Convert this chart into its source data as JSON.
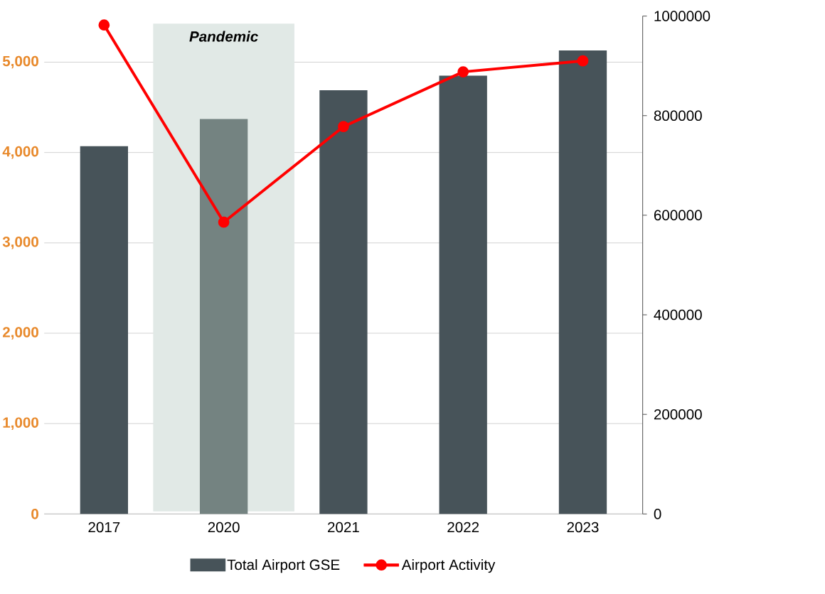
{
  "chart_data": {
    "type": "bar",
    "categories": [
      "2017",
      "2020",
      "2021",
      "2022",
      "2023"
    ],
    "series": [
      {
        "name": "Total Airport GSE",
        "color": "#475359",
        "colors": [
          "#475359",
          "#748381",
          "#475359",
          "#475359",
          "#475359"
        ],
        "values": [
          4070,
          4370,
          4690,
          4850,
          5130
        ]
      },
      {
        "name": "Airport Activity",
        "type": "line",
        "axis": "y2",
        "color": "#ff0000",
        "marker": "circle",
        "values": [
          982000,
          586000,
          778000,
          888000,
          910000
        ]
      }
    ],
    "ylim": [
      0,
      5510
    ],
    "yticks": [
      {
        "value": 0,
        "label": "0"
      },
      {
        "value": 1000,
        "label": "1,000"
      },
      {
        "value": 2000,
        "label": "2,000"
      },
      {
        "value": 3000,
        "label": "3,000"
      },
      {
        "value": 4000,
        "label": "4,000"
      },
      {
        "value": 5000,
        "label": "5,000"
      }
    ],
    "y2lim": [
      0,
      1000000
    ],
    "y2ticks": [
      0,
      200000,
      400000,
      600000,
      800000,
      1000000
    ],
    "bands": [
      {
        "axis": "x",
        "from": "2020",
        "to": "2020",
        "label": "Pandemic",
        "color": "#e1e9e6"
      }
    ],
    "grid": "y",
    "legend": "bottom"
  }
}
